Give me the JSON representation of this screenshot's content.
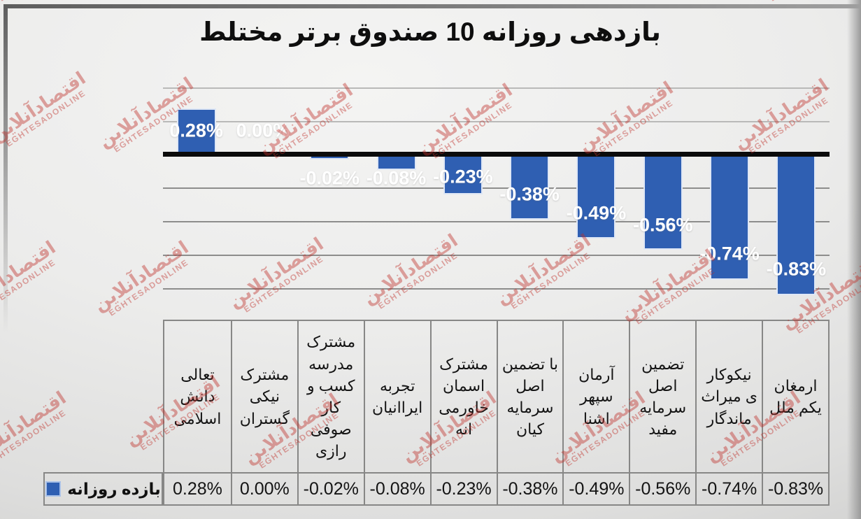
{
  "watermark": {
    "fa": "اقتصادآنلاین",
    "en": "EGHTESADONLINE",
    "color": "#bf2e28"
  },
  "chart_data": {
    "type": "bar",
    "title": "بازدهی روزانه 10 صندوق برتر مختلط",
    "categories": [
      "تعالی دانش اسلامی",
      "مشترک نیکی گستران",
      "مشترک مدرسه کسب و کار صوفی رازی",
      "تجربه ایراانیان",
      "مشترک اسمان خاورمی انه",
      "با تضمین اصل سرمایه کیان",
      "آرمان سپهر اشنا",
      "تضمین اصل سرمایه مفید",
      "نیکوکار ی میراث ماندگار",
      "ارمغان یکم ملل"
    ],
    "series": [
      {
        "name": "بازده روزانه",
        "values": [
          0.28,
          0.0,
          -0.02,
          -0.08,
          -0.23,
          -0.38,
          -0.49,
          -0.56,
          -0.74,
          -0.83
        ]
      }
    ],
    "value_labels": [
      "0.28%",
      "0.00%",
      "-0.02%",
      "-0.08%",
      "-0.23%",
      "-0.38%",
      "-0.49%",
      "-0.56%",
      "-0.74%",
      "-0.83%"
    ],
    "xlabel": "",
    "ylabel": "",
    "ylim": [
      -0.9,
      0.45
    ],
    "gridline_values": [
      0.4,
      0.2,
      0,
      -0.2,
      -0.4,
      -0.6,
      -0.8
    ],
    "grid": true,
    "legend_position": "bottom-left-table",
    "bar_color": "#2f5fb2",
    "data_label_color": "#ffffff"
  }
}
